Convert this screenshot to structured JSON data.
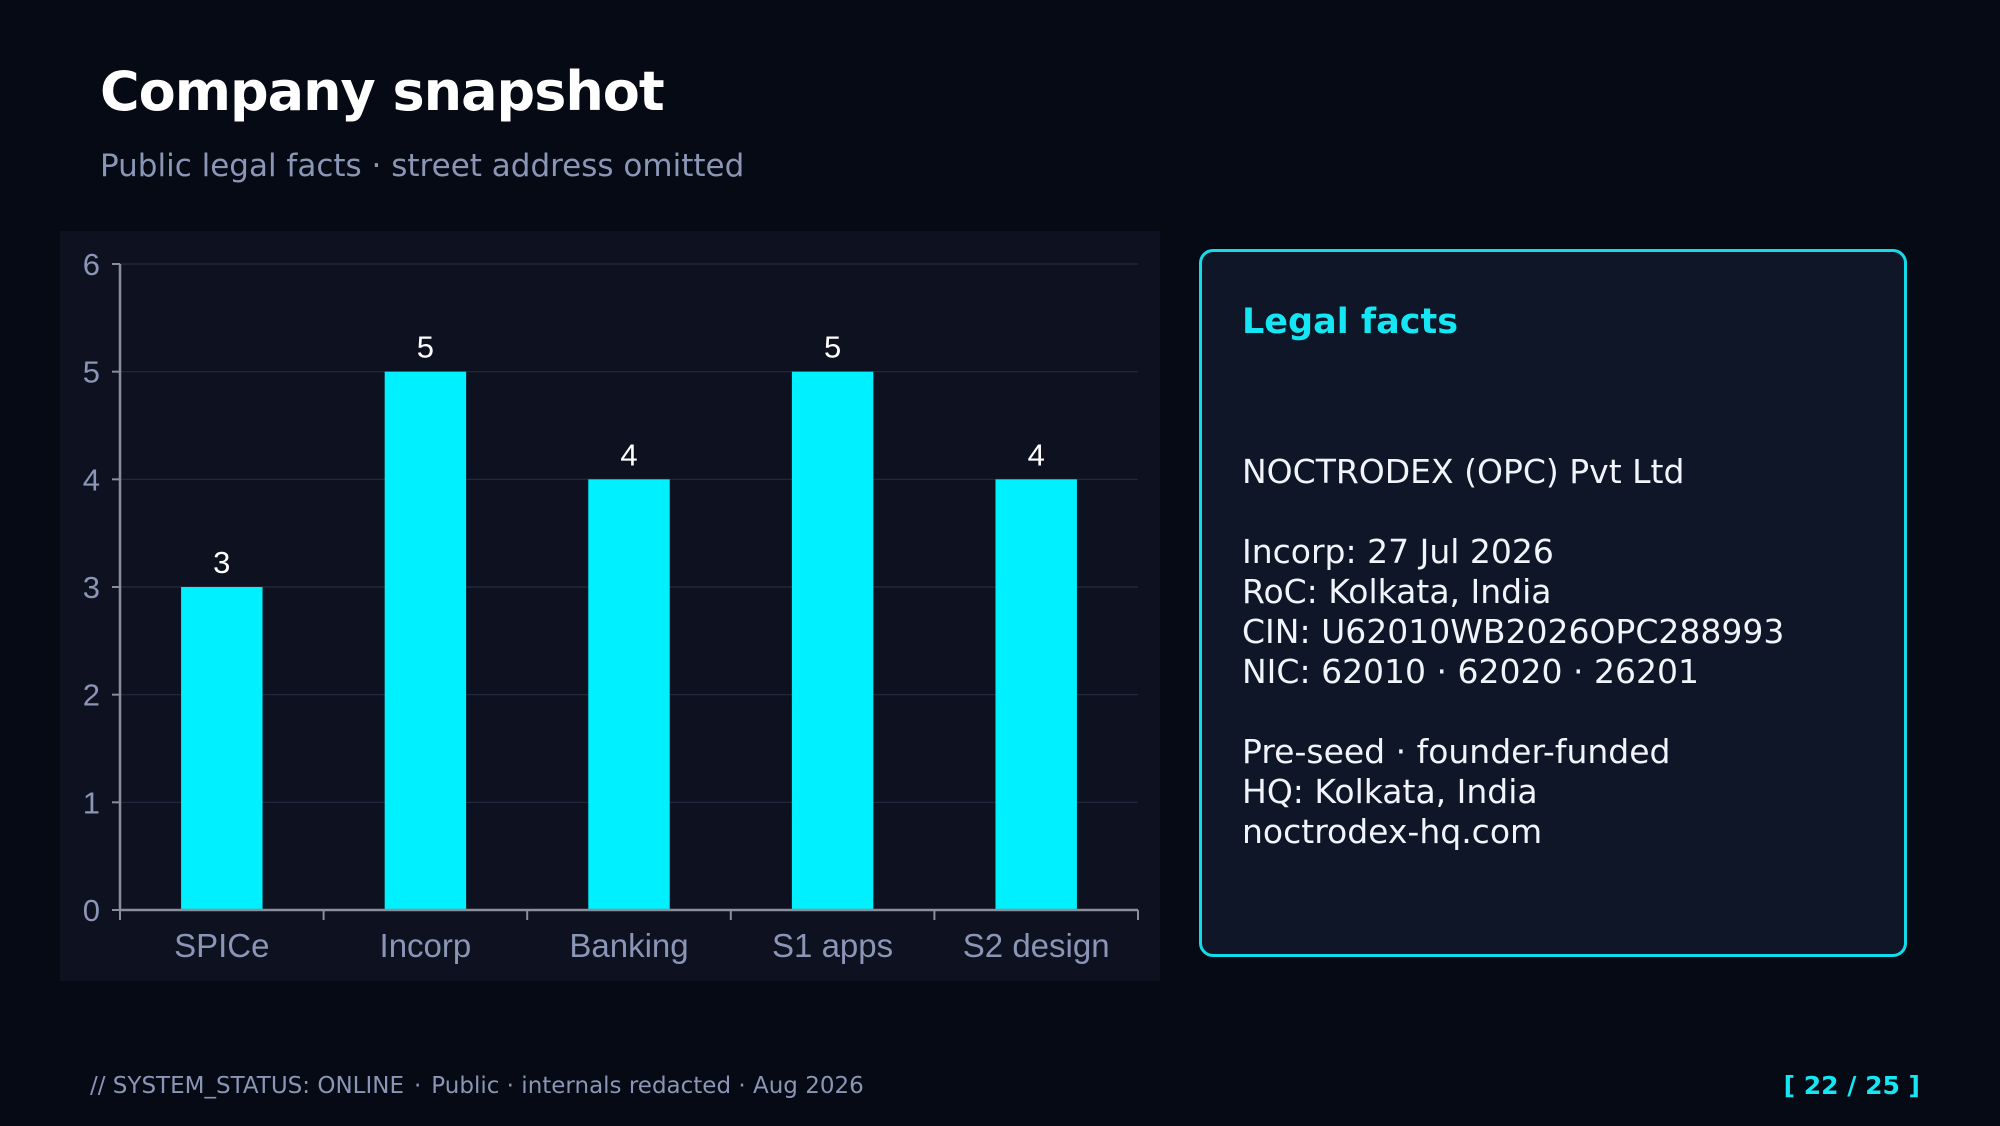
{
  "header": {
    "title": "Company snapshot",
    "subtitle": "Public legal facts · street address omitted"
  },
  "chart_data": {
    "type": "bar",
    "categories": [
      "SPICe",
      "Incorp",
      "Banking",
      "S1 apps",
      "S2 design"
    ],
    "values": [
      3,
      5,
      4,
      5,
      4
    ],
    "data_labels": [
      "3",
      "5",
      "4",
      "5",
      "4"
    ],
    "ylim": [
      0,
      6
    ],
    "yticks": [
      0,
      1,
      2,
      3,
      4,
      5,
      6
    ],
    "grid": true,
    "legend": "none",
    "title": "",
    "xlabel": "",
    "ylabel": "",
    "colors": {
      "bar": "#00f0ff",
      "tick_label": "#8b95b5",
      "data_label": "#ffffff",
      "grid": "#262c40",
      "axis": "#8b8f9c"
    }
  },
  "facts_card": {
    "heading": "Legal facts",
    "company": "NOCTRODEX (OPC) Pvt Ltd",
    "incorp": "Incorp: 27 Jul 2026",
    "roc": "RoC: Kolkata, India",
    "cin": "CIN: U62010WB2026OPC288993",
    "nic": "NIC: 62010 · 62020 · 26201",
    "stage": "Pre-seed · founder-funded",
    "hq": "HQ: Kolkata, India",
    "website": "noctrodex-hq.com"
  },
  "footer": {
    "status": "// SYSTEM_STATUS: ONLINE",
    "separator": "·",
    "note": "Public · internals redacted · Aug 2026",
    "page": "[ 22 / 25 ]"
  },
  "theme": {
    "background": "#060a14",
    "accent": "#14e6f3"
  }
}
